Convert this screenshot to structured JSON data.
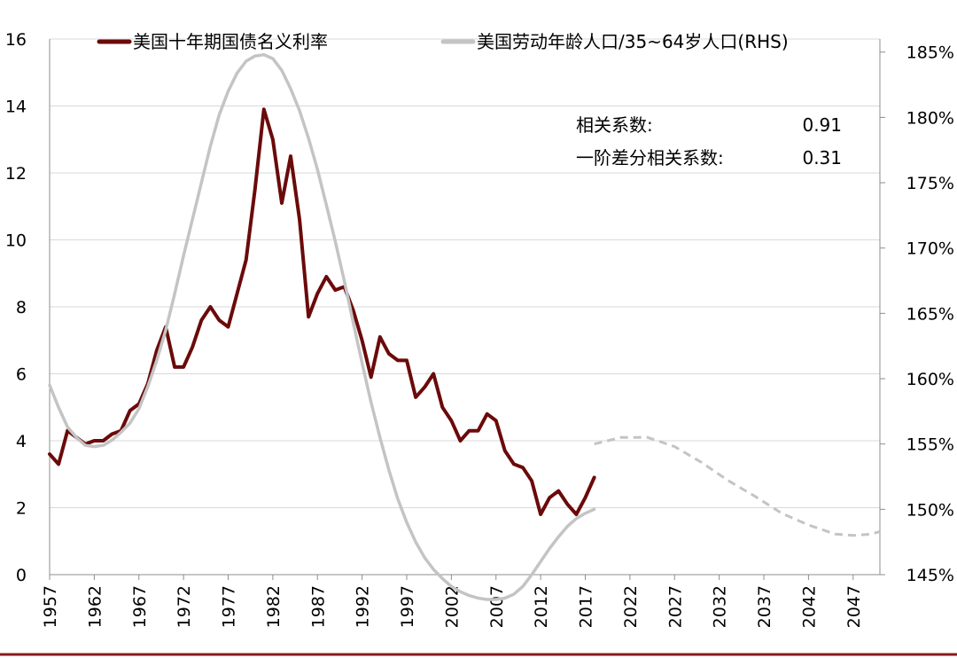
{
  "chart_data": {
    "type": "line",
    "legend": {
      "placement": "top",
      "items": [
        {
          "label": "美国十年期国债名义利率",
          "color": "#6b0a0a"
        },
        {
          "label": "美国劳动年龄人口/35~64岁人口(RHS)",
          "color": "#c4c4c4"
        }
      ]
    },
    "annotations": [
      {
        "label": "相关系数:",
        "value": "0.91"
      },
      {
        "label": "一阶差分相关系数:",
        "value": "0.31"
      }
    ],
    "x_ticks": [
      "1957",
      "1962",
      "1967",
      "1972",
      "1977",
      "1982",
      "1987",
      "1992",
      "1997",
      "2002",
      "2007",
      "2012",
      "2017",
      "2022",
      "2027",
      "2032",
      "2037",
      "2042",
      "2047"
    ],
    "xlim": [
      1957,
      2050
    ],
    "y_left": {
      "ylim": [
        0,
        16
      ],
      "ticks": [
        "0",
        "2",
        "4",
        "6",
        "8",
        "10",
        "12",
        "14",
        "16"
      ]
    },
    "y_right": {
      "ylim": [
        1.45,
        1.86
      ],
      "ticks": [
        "145%",
        "150%",
        "155%",
        "160%",
        "165%",
        "170%",
        "175%",
        "180%",
        "185%"
      ]
    },
    "grid": true,
    "series": [
      {
        "name": "美国十年期国债名义利率",
        "axis": "left",
        "color": "#6b0a0a",
        "style": "solid",
        "x": [
          1957,
          1958,
          1959,
          1960,
          1961,
          1962,
          1963,
          1964,
          1965,
          1966,
          1967,
          1968,
          1969,
          1970,
          1971,
          1972,
          1973,
          1974,
          1975,
          1976,
          1977,
          1978,
          1979,
          1980,
          1981,
          1982,
          1983,
          1984,
          1985,
          1986,
          1987,
          1988,
          1989,
          1990,
          1991,
          1992,
          1993,
          1994,
          1995,
          1996,
          1997,
          1998,
          1999,
          2000,
          2001,
          2002,
          2003,
          2004,
          2005,
          2006,
          2007,
          2008,
          2009,
          2010,
          2011,
          2012,
          2013,
          2014,
          2015,
          2016,
          2017,
          2018
        ],
        "y": [
          3.6,
          3.3,
          4.3,
          4.1,
          3.9,
          4.0,
          4.0,
          4.2,
          4.3,
          4.9,
          5.1,
          5.7,
          6.7,
          7.4,
          6.2,
          6.2,
          6.8,
          7.6,
          8.0,
          7.6,
          7.4,
          8.4,
          9.4,
          11.5,
          13.9,
          13.0,
          11.1,
          12.5,
          10.6,
          7.7,
          8.4,
          8.9,
          8.5,
          8.6,
          7.9,
          7.0,
          5.9,
          7.1,
          6.6,
          6.4,
          6.4,
          5.3,
          5.6,
          6.0,
          5.0,
          4.6,
          4.0,
          4.3,
          4.3,
          4.8,
          4.6,
          3.7,
          3.3,
          3.2,
          2.8,
          1.8,
          2.3,
          2.5,
          2.1,
          1.8,
          2.3,
          2.9
        ]
      },
      {
        "name": "美国劳动年龄人口/35~64岁人口(RHS)",
        "axis": "right",
        "color": "#c4c4c4",
        "style": "solid",
        "x": [
          1957,
          1958,
          1959,
          1960,
          1961,
          1962,
          1963,
          1964,
          1965,
          1966,
          1967,
          1968,
          1969,
          1970,
          1971,
          1972,
          1973,
          1974,
          1975,
          1976,
          1977,
          1978,
          1979,
          1980,
          1981,
          1982,
          1983,
          1984,
          1985,
          1986,
          1987,
          1988,
          1989,
          1990,
          1991,
          1992,
          1993,
          1994,
          1995,
          1996,
          1997,
          1998,
          1999,
          2000,
          2001,
          2002,
          2003,
          2004,
          2005,
          2006,
          2007,
          2008,
          2009,
          2010,
          2011,
          2012,
          2013,
          2014,
          2015,
          2016,
          2017,
          2018
        ],
        "y": [
          1.595,
          1.578,
          1.563,
          1.555,
          1.549,
          1.548,
          1.549,
          1.553,
          1.559,
          1.566,
          1.577,
          1.594,
          1.614,
          1.637,
          1.665,
          1.694,
          1.722,
          1.75,
          1.778,
          1.802,
          1.82,
          1.834,
          1.843,
          1.847,
          1.848,
          1.845,
          1.836,
          1.822,
          1.805,
          1.784,
          1.76,
          1.733,
          1.705,
          1.675,
          1.643,
          1.612,
          1.582,
          1.555,
          1.53,
          1.508,
          1.49,
          1.475,
          1.463,
          1.454,
          1.447,
          1.441,
          1.437,
          1.434,
          1.432,
          1.431,
          1.431,
          1.432,
          1.435,
          1.441,
          1.45,
          1.46,
          1.47,
          1.479,
          1.487,
          1.493,
          1.497,
          1.5
        ]
      },
      {
        "name": "",
        "axis": "right",
        "color": "#c4c4c4",
        "style": "dashed",
        "x": [
          2018,
          2021,
          2024,
          2027,
          2030,
          2033,
          2036,
          2039,
          2042,
          2045,
          2047,
          2049,
          2050
        ],
        "y": [
          1.55,
          1.555,
          1.555,
          1.548,
          1.536,
          1.522,
          1.51,
          1.497,
          1.488,
          1.481,
          1.48,
          1.481,
          1.483
        ]
      }
    ]
  }
}
